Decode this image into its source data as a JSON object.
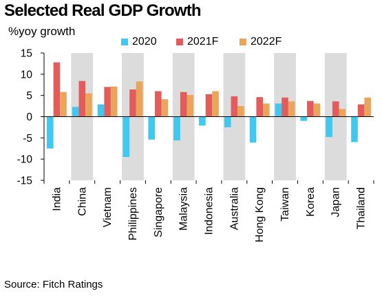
{
  "chart_data": {
    "type": "bar",
    "title": "Selected Real GDP Growth",
    "ylabel": "%yoy growth",
    "source": "Source: Fitch Ratings",
    "categories": [
      "India",
      "China",
      "Vietnam",
      "Philippines",
      "Singapore",
      "Malaysia",
      "Indonesia",
      "Australia",
      "Hong Kong",
      "Taiwan",
      "Korea",
      "Japan",
      "Thailand"
    ],
    "series": [
      {
        "name": "2020",
        "color": "#3fc8f0",
        "values": [
          -7.5,
          2.3,
          2.9,
          -9.5,
          -5.4,
          -5.6,
          -2.1,
          -2.5,
          -6.1,
          3.1,
          -1.0,
          -4.8,
          -6.0
        ]
      },
      {
        "name": "2021F",
        "color": "#e35b5b",
        "values": [
          12.8,
          8.4,
          7.0,
          6.4,
          6.0,
          5.8,
          5.3,
          4.8,
          4.6,
          4.5,
          3.7,
          3.6,
          2.9
        ]
      },
      {
        "name": "2022F",
        "color": "#e9a65a",
        "values": [
          5.8,
          5.5,
          7.1,
          8.3,
          4.1,
          5.1,
          6.0,
          2.5,
          3.1,
          3.6,
          3.1,
          1.8,
          4.5
        ]
      }
    ],
    "yticks": [
      15,
      10,
      5,
      0,
      -5,
      -10,
      -15
    ],
    "ylim": [
      -15,
      15
    ],
    "shaded_categories": [
      "China",
      "Philippines",
      "Malaysia",
      "Australia",
      "Taiwan",
      "Japan"
    ],
    "shade_color": "#dcdcdc",
    "legend_position": "top",
    "grid": false
  }
}
